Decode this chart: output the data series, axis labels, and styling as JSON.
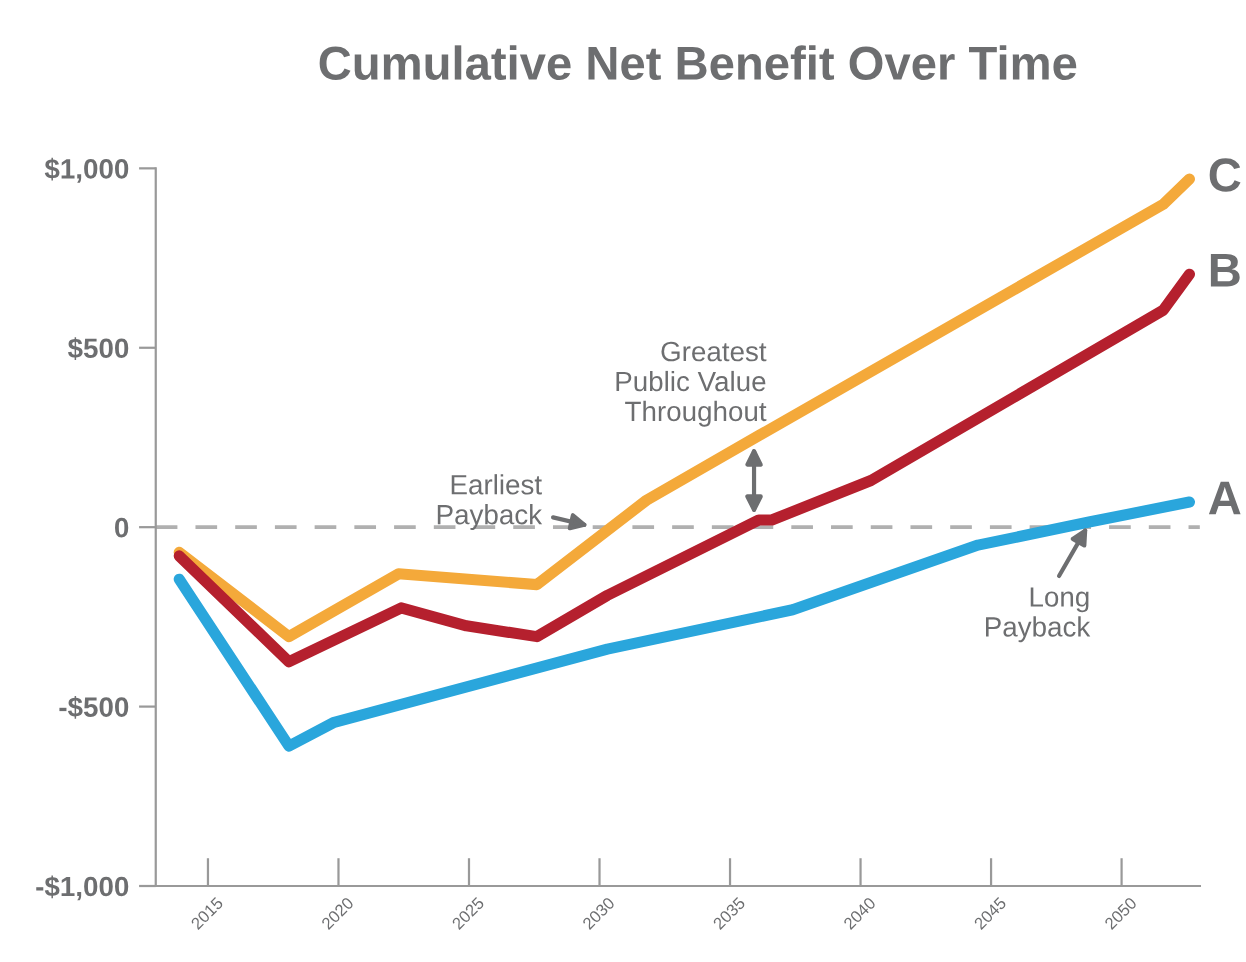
{
  "chart_data": {
    "type": "line",
    "title": "Cumulative Net Benefit Over Time",
    "xlim": [
      2013,
      2053
    ],
    "xticks": [
      2015,
      2020,
      2025,
      2030,
      2035,
      2040,
      2045,
      2050
    ],
    "ylim": [
      -1000,
      1000
    ],
    "yticks": [
      {
        "value": 1000,
        "label": "$1,000"
      },
      {
        "value": 500,
        "label": "$500"
      },
      0,
      {
        "value": -500,
        "label": "-$500"
      },
      {
        "value": -1000,
        "label": "-$1,000"
      }
    ],
    "grid": false,
    "legend": false,
    "marker": "none",
    "line_style": "solid",
    "series": [
      {
        "name": "C",
        "color": "#f4a93a",
        "x": [
          2013.9,
          2018.1,
          2022.3,
          2027.6,
          2031.8,
          2036.1,
          2051.6,
          2052.6
        ],
        "values": [
          -70,
          -305,
          -130,
          -160,
          75,
          255,
          900,
          970
        ]
      },
      {
        "name": "B",
        "color": "#b5202e",
        "x": [
          2013.9,
          2018.1,
          2022.4,
          2024.9,
          2027.6,
          2030.3,
          2036.1,
          2036.6,
          2040.4,
          2051.6,
          2052.6
        ],
        "values": [
          -80,
          -375,
          -225,
          -275,
          -305,
          -190,
          20,
          20,
          130,
          605,
          705
        ]
      },
      {
        "name": "A",
        "color": "#2aa6dc",
        "x": [
          2013.9,
          2018.1,
          2019.8,
          2030.3,
          2037.4,
          2044.5,
          2048.8,
          2052.6
        ],
        "values": [
          -145,
          -610,
          -545,
          -340,
          -230,
          -50,
          15,
          70
        ]
      }
    ],
    "ref_lines": [
      {
        "axis": "y",
        "value": 0,
        "color": "#b0b0b0",
        "line_style": "dashed"
      }
    ],
    "annotations": [
      "Earliest\nPayback",
      "Greatest\nPublic Value\nThroughout",
      {
        "text": "Long\nPayback",
        "x": 2048.8,
        "y": 15
      }
    ]
  }
}
